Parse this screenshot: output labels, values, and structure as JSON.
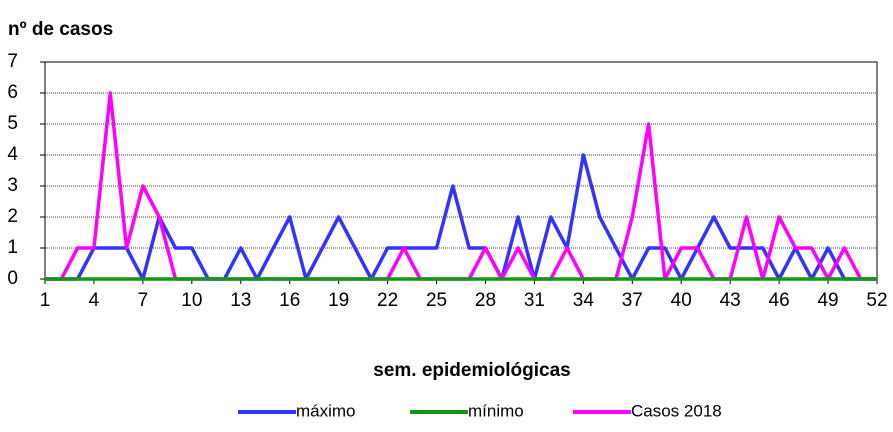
{
  "chart_data": {
    "type": "line",
    "title": "nº de casos",
    "x_label": "sem. epidemiológicas",
    "x": [
      1,
      2,
      3,
      4,
      5,
      6,
      7,
      8,
      9,
      10,
      11,
      12,
      13,
      14,
      15,
      16,
      17,
      18,
      19,
      20,
      21,
      22,
      23,
      24,
      25,
      26,
      27,
      28,
      29,
      30,
      31,
      32,
      33,
      34,
      35,
      36,
      37,
      38,
      39,
      40,
      41,
      42,
      43,
      44,
      45,
      46,
      47,
      48,
      49,
      50,
      51,
      52
    ],
    "xlim": [
      1,
      52
    ],
    "xticks": [
      1,
      4,
      7,
      10,
      13,
      16,
      19,
      22,
      25,
      28,
      31,
      34,
      37,
      40,
      43,
      46,
      49,
      52
    ],
    "ylim": [
      0,
      7
    ],
    "yticks": [
      0,
      1,
      2,
      3,
      4,
      5,
      6,
      7
    ],
    "grid": true,
    "legend": "bottom",
    "series": [
      {
        "name": "máximo",
        "color": "#3333ff",
        "values": [
          0,
          0,
          0,
          1,
          1,
          1,
          0,
          2,
          1,
          1,
          0,
          0,
          1,
          0,
          1,
          2,
          0,
          1,
          2,
          1,
          0,
          1,
          1,
          1,
          1,
          3,
          1,
          1,
          0,
          2,
          0,
          2,
          1,
          4,
          2,
          1,
          0,
          1,
          1,
          0,
          1,
          2,
          1,
          1,
          1,
          0,
          1,
          0,
          1,
          0,
          0,
          0
        ]
      },
      {
        "name": "mínimo",
        "color": "#119911",
        "values": [
          0,
          0,
          0,
          0,
          0,
          0,
          0,
          0,
          0,
          0,
          0,
          0,
          0,
          0,
          0,
          0,
          0,
          0,
          0,
          0,
          0,
          0,
          0,
          0,
          0,
          0,
          0,
          0,
          0,
          0,
          0,
          0,
          0,
          0,
          0,
          0,
          0,
          0,
          0,
          0,
          0,
          0,
          0,
          0,
          0,
          0,
          0,
          0,
          0,
          0,
          0,
          0
        ]
      },
      {
        "name": "Casos 2018",
        "color": "#ff00ff",
        "values": [
          0,
          0,
          1,
          1,
          6,
          1,
          3,
          2,
          0,
          0,
          0,
          0,
          0,
          0,
          0,
          0,
          0,
          0,
          0,
          0,
          0,
          0,
          1,
          0,
          0,
          0,
          0,
          1,
          0,
          1,
          0,
          0,
          1,
          0,
          0,
          0,
          2,
          5,
          0,
          1,
          1,
          0,
          0,
          2,
          0,
          2,
          1,
          1,
          0,
          1,
          0,
          0
        ]
      }
    ]
  }
}
